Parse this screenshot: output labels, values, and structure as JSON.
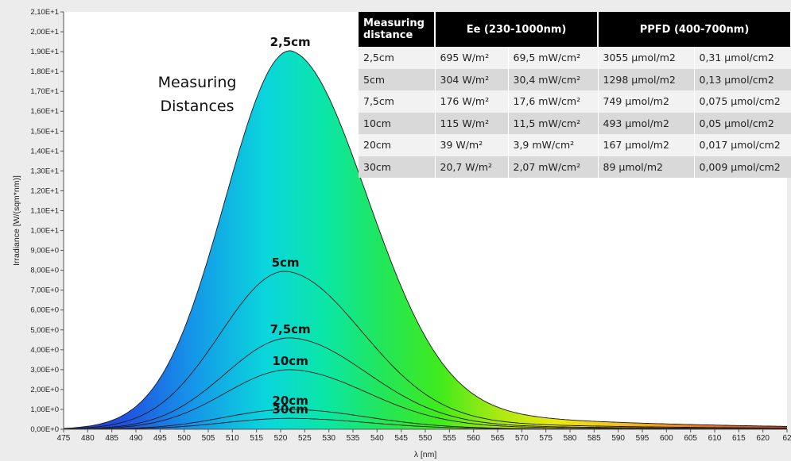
{
  "chart_data": {
    "type": "area",
    "xlabel": "λ [nm]",
    "ylabel": "Irradiance [W/(sqm*nm)]",
    "xlim": [
      475,
      625
    ],
    "ylim": [
      0,
      21
    ],
    "x_ticks": [
      "475",
      "480",
      "485",
      "490",
      "495",
      "500",
      "505",
      "510",
      "515",
      "520",
      "525",
      "530",
      "535",
      "540",
      "545",
      "550",
      "555",
      "560",
      "565",
      "570",
      "575",
      "580",
      "585",
      "590",
      "595",
      "600",
      "605",
      "610",
      "615",
      "620",
      "62"
    ],
    "y_ticks": [
      "0,00E+0",
      "1,00E+0",
      "2,00E+0",
      "3,00E+0",
      "4,00E+0",
      "5,00E+0",
      "6,00E+0",
      "7,00E+0",
      "8,00E+0",
      "9,00E+0",
      "1,00E+1",
      "1,10E+1",
      "1,20E+1",
      "1,30E+1",
      "1,40E+1",
      "1,50E+1",
      "1,60E+1",
      "1,70E+1",
      "1,80E+1",
      "1,90E+1",
      "2,00E+1",
      "2,10E+1"
    ],
    "grid": false,
    "annotation": "Measuring Distances",
    "series": [
      {
        "name": "2,5cm",
        "peak_x": 522,
        "peak": 19.05
      },
      {
        "name": "5cm",
        "peak_x": 521,
        "peak": 7.95
      },
      {
        "name": "7,5cm",
        "peak_x": 522,
        "peak": 4.6
      },
      {
        "name": "10cm",
        "peak_x": 522,
        "peak": 3.0
      },
      {
        "name": "20cm",
        "peak_x": 522,
        "peak": 1.0
      },
      {
        "name": "30cm",
        "peak_x": 522,
        "peak": 0.55
      }
    ]
  },
  "table": {
    "headers": [
      "Measuring distance",
      "Ee  (230-1000nm)",
      "PPFD (400-700nm)"
    ],
    "rows": [
      [
        "2,5cm",
        "695 W/m²",
        "69,5 mW/cm²",
        "3055 µmol/m2",
        "0,31 µmol/cm2"
      ],
      [
        "5cm",
        "304 W/m²",
        "30,4 mW/cm²",
        "1298 µmol/m2",
        "0,13 µmol/cm2"
      ],
      [
        "7,5cm",
        "176 W/m²",
        "17,6 mW/cm²",
        "749 µmol/m2",
        "0,075 µmol/cm2"
      ],
      [
        "10cm",
        "115 W/m²",
        "11,5 mW/cm²",
        "493 µmol/m2",
        "0,05 µmol/cm2"
      ],
      [
        "20cm",
        "39 W/m²",
        "3,9 mW/cm²",
        "167 µmol/m2",
        "0,017 µmol/cm2"
      ],
      [
        "30cm",
        "20,7 W/m²",
        "2,07 mW/cm²",
        "89 µmol/m2",
        "0,009 µmol/cm2"
      ]
    ]
  }
}
